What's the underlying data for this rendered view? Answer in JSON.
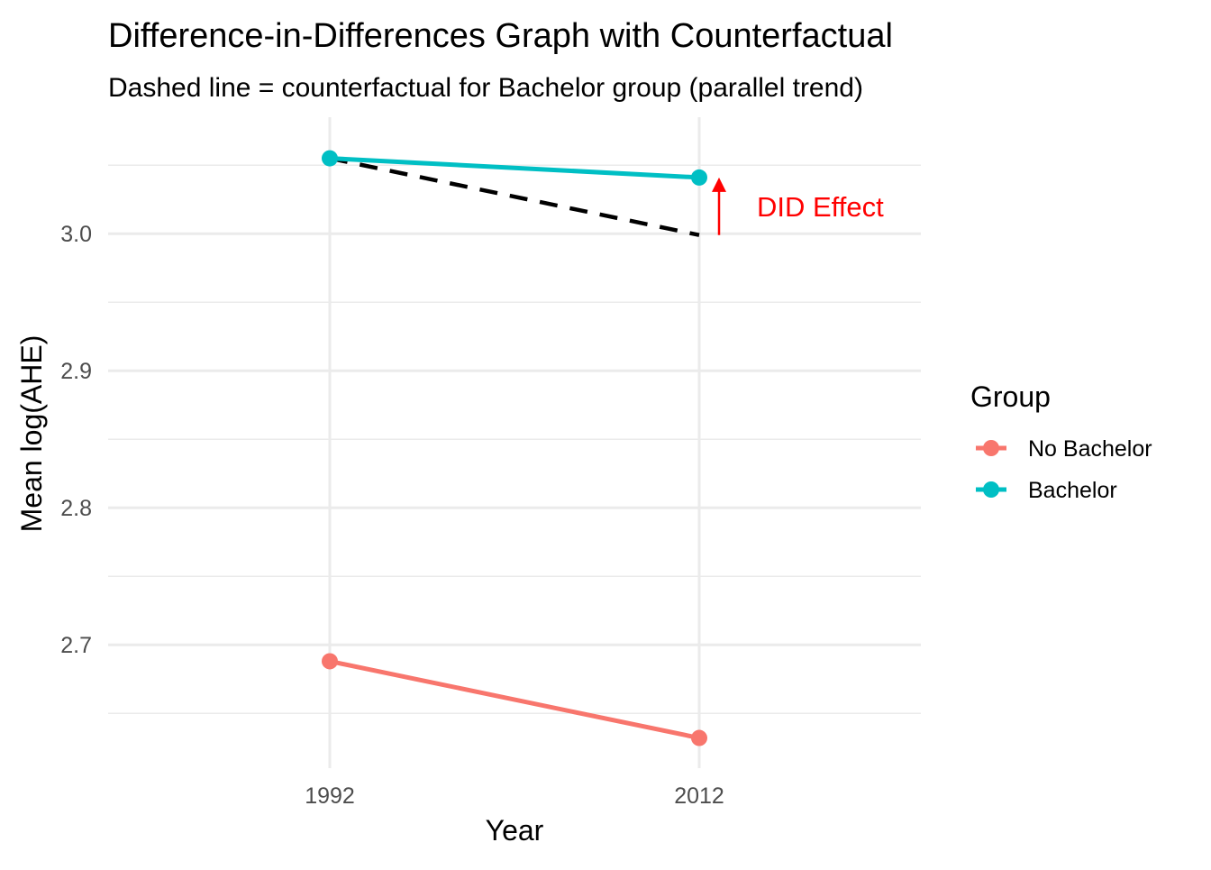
{
  "chart_data": {
    "type": "line",
    "title": "Difference-in-Differences Graph with Counterfactual",
    "subtitle": "Dashed line = counterfactual for Bachelor group (parallel trend)",
    "xlabel": "Year",
    "ylabel": "Mean log(AHE)",
    "x": [
      1992,
      2012
    ],
    "x_tick_labels": [
      "1992",
      "2012"
    ],
    "y_ticks": [
      2.7,
      2.8,
      2.9,
      3.0
    ],
    "y_tick_labels": [
      "2.7",
      "2.8",
      "2.9",
      "3.0"
    ],
    "ylim": [
      2.61,
      3.085
    ],
    "grid": true,
    "series": [
      {
        "name": "No Bachelor",
        "values": [
          2.688,
          2.632
        ],
        "color": "#F8766D"
      },
      {
        "name": "Bachelor",
        "values": [
          3.055,
          3.041
        ],
        "color": "#00BFC4"
      }
    ],
    "counterfactual": {
      "style": "dashed",
      "color": "#000000",
      "x": [
        1992,
        2012
      ],
      "values": [
        3.055,
        2.999
      ]
    },
    "annotation": {
      "text": "DID Effect",
      "color": "#FF0000",
      "arrow_from": 2.999,
      "arrow_to": 3.041
    },
    "legend": {
      "title": "Group",
      "placement": "right",
      "entries": [
        "No Bachelor",
        "Bachelor"
      ]
    }
  }
}
